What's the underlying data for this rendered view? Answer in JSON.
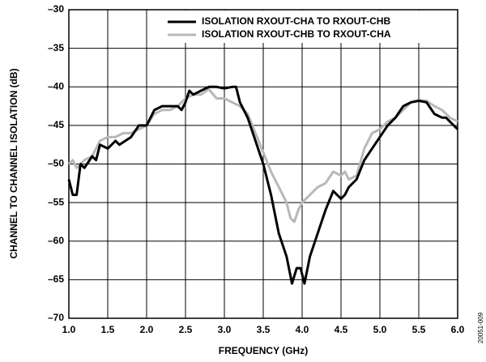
{
  "chart_data": {
    "type": "line",
    "xlabel": "FREQUENCY (GHz)",
    "ylabel": "CHANNEL TO CHANNEL ISOLATION (dB)",
    "annotation": "20051-009",
    "xlim": [
      1,
      6
    ],
    "ylim": [
      -70,
      -30
    ],
    "xticks": [
      {
        "value": 1,
        "label": "1.0"
      },
      1.5,
      {
        "value": 2,
        "label": "2.0"
      },
      2.5,
      {
        "value": 3,
        "label": "3.0"
      },
      3.5,
      {
        "value": 4,
        "label": "4.0"
      },
      4.5,
      {
        "value": 5,
        "label": "5.0"
      },
      5.5,
      {
        "value": 6,
        "label": "6.0"
      }
    ],
    "yticks": [
      {
        "value": -70,
        "label": "–70"
      },
      {
        "value": -65,
        "label": "–65"
      },
      {
        "value": -60,
        "label": "–60"
      },
      {
        "value": -55,
        "label": "–55"
      },
      {
        "value": -50,
        "label": "–50"
      },
      {
        "value": -45,
        "label": "–45"
      },
      {
        "value": -40,
        "label": "–40"
      },
      {
        "value": -35,
        "label": "–35"
      },
      {
        "value": -30,
        "label": "–30"
      }
    ],
    "grid": true,
    "legend": "upper right",
    "series": [
      {
        "name": "ISOLATION RXOUT-CHA TO RXOUT-CHB",
        "color": "#000000",
        "x": [
          1.0,
          1.05,
          1.1,
          1.15,
          1.2,
          1.3,
          1.35,
          1.4,
          1.5,
          1.6,
          1.65,
          1.8,
          1.9,
          2.0,
          2.1,
          2.2,
          2.3,
          2.4,
          2.45,
          2.5,
          2.55,
          2.6,
          2.7,
          2.8,
          2.9,
          3.0,
          3.1,
          3.15,
          3.2,
          3.3,
          3.4,
          3.5,
          3.6,
          3.7,
          3.8,
          3.87,
          3.93,
          3.98,
          4.03,
          4.1,
          4.2,
          4.3,
          4.4,
          4.5,
          4.55,
          4.6,
          4.7,
          4.8,
          4.9,
          5.0,
          5.1,
          5.2,
          5.3,
          5.4,
          5.5,
          5.6,
          5.7,
          5.8,
          5.85,
          5.95,
          6.0
        ],
        "values": [
          -52,
          -54,
          -54,
          -50,
          -50.5,
          -49,
          -49.5,
          -47.5,
          -48,
          -47,
          -47.5,
          -46.5,
          -45,
          -45,
          -43,
          -42.5,
          -42.5,
          -42.5,
          -43,
          -42,
          -40.5,
          -41,
          -40.5,
          -40,
          -40,
          -40.2,
          -40,
          -40,
          -42,
          -44,
          -47,
          -50,
          -54,
          -59,
          -62,
          -65.5,
          -63.5,
          -63.5,
          -65.5,
          -62,
          -59,
          -56,
          -53.5,
          -54.5,
          -54,
          -53,
          -52,
          -49.5,
          -48,
          -46.5,
          -45,
          -44,
          -42.5,
          -42,
          -41.8,
          -42,
          -43.5,
          -44,
          -44,
          -45,
          -45.5
        ]
      },
      {
        "name": "ISOLATION RXOUT-CHB TO RXOUT-CHA",
        "color": "#b8b8b8",
        "x": [
          1.0,
          1.05,
          1.1,
          1.2,
          1.3,
          1.4,
          1.5,
          1.6,
          1.7,
          1.8,
          1.9,
          2.0,
          2.1,
          2.2,
          2.3,
          2.4,
          2.5,
          2.6,
          2.7,
          2.8,
          2.9,
          3.0,
          3.1,
          3.2,
          3.3,
          3.4,
          3.5,
          3.6,
          3.7,
          3.8,
          3.85,
          3.9,
          3.95,
          4.0,
          4.1,
          4.2,
          4.3,
          4.4,
          4.5,
          4.55,
          4.6,
          4.7,
          4.8,
          4.9,
          5.0,
          5.1,
          5.2,
          5.3,
          5.4,
          5.5,
          5.6,
          5.7,
          5.8,
          5.9,
          6.0
        ],
        "values": [
          -50,
          -49.5,
          -50.5,
          -49.5,
          -49,
          -47,
          -46.5,
          -46.5,
          -46,
          -46,
          -45.5,
          -45,
          -43.5,
          -43,
          -43,
          -42.5,
          -41.5,
          -41,
          -41,
          -40.3,
          -41.5,
          -41.5,
          -42,
          -42.5,
          -43.5,
          -46,
          -48.5,
          -51,
          -53,
          -55,
          -57,
          -57.5,
          -56,
          -55,
          -54,
          -53,
          -52.5,
          -51,
          -51.5,
          -51,
          -52,
          -51.5,
          -48,
          -46,
          -45.5,
          -44.5,
          -44,
          -43,
          -42,
          -41.8,
          -41.8,
          -42.5,
          -43,
          -44,
          -44.5
        ]
      }
    ]
  }
}
